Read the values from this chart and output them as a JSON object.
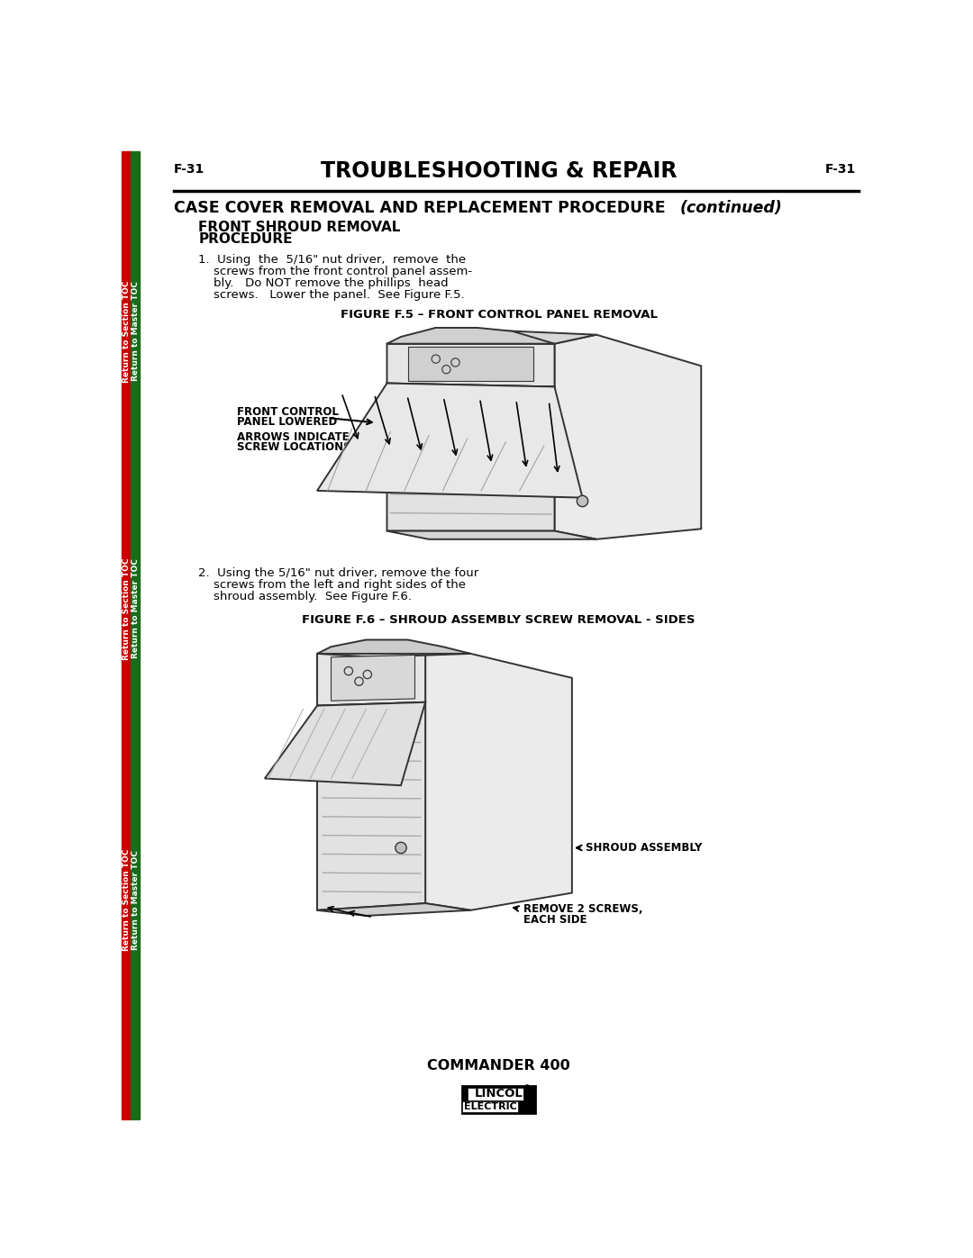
{
  "page_label_left": "F-31",
  "page_label_right": "F-31",
  "header_title": "TROUBLESHOOTING & REPAIR",
  "section_title": "CASE COVER REMOVAL AND REPLACEMENT PROCEDURE",
  "section_title_italic": "(continued)",
  "subsection_line1": "FRONT SHROUD REMOVAL",
  "subsection_line2": "PROCEDURE",
  "step1_lines": [
    "1.  Using  the  5/16\" nut driver,  remove  the",
    "    screws from the front control panel assem-",
    "    bly.   Do NOT remove the phillips  head",
    "    screws.   Lower the panel.  See Figure F.5."
  ],
  "figure1_caption": "FIGURE F.5 – FRONT CONTROL PANEL REMOVAL",
  "label1a_line1": "FRONT CONTROL",
  "label1a_line2": "PANEL LOWERED",
  "label1b_line1": "ARROWS INDICATE",
  "label1b_line2": "SCREW LOCATIONS",
  "step2_lines": [
    "2.  Using the 5/16\" nut driver, remove the four",
    "    screws from the left and right sides of the",
    "    shroud assembly.  See Figure F.6."
  ],
  "figure2_caption": "FIGURE F.6 – SHROUD ASSEMBLY SCREW REMOVAL - SIDES",
  "label2a": "SHROUD ASSEMBLY",
  "label2b_line1": "REMOVE 2 SCREWS,",
  "label2b_line2": "EACH SIDE",
  "footer_text": "COMMANDER 400",
  "sidebar_text1": "Return to Section TOC",
  "sidebar_text2": "Return to Master TOC",
  "bg_color": "#ffffff",
  "text_color": "#000000",
  "red_color": "#cc0000",
  "green_color": "#1a6b1a",
  "line_color": "#222222",
  "body_fill": "#f0f0f0",
  "body_edge": "#333333"
}
